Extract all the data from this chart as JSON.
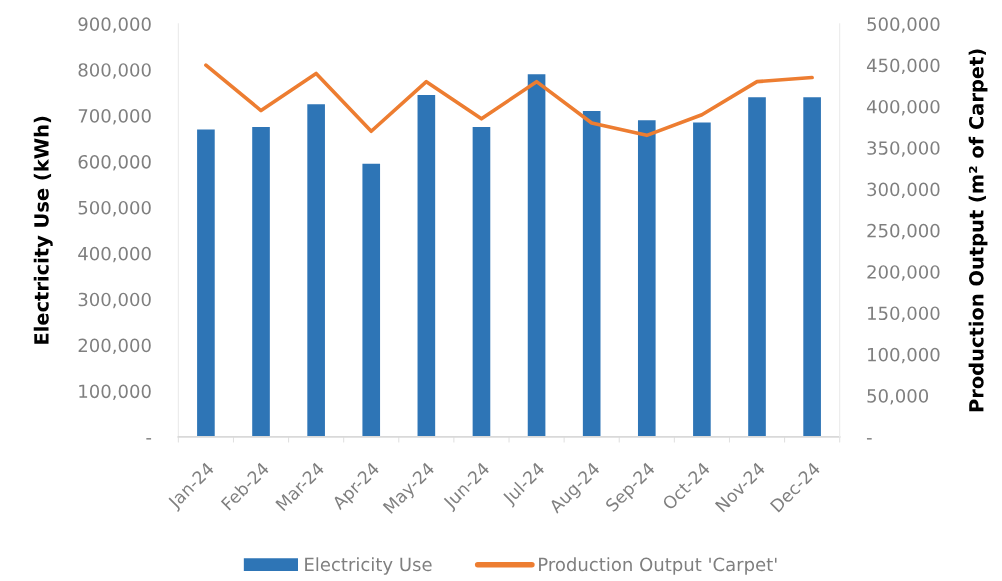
{
  "chart_data": {
    "type": "bar",
    "categories": [
      "Jan-24",
      "Feb-24",
      "Mar-24",
      "Apr-24",
      "May-24",
      "Jun-24",
      "Jul-24",
      "Aug-24",
      "Sep-24",
      "Oct-24",
      "Nov-24",
      "Dec-24"
    ],
    "ylabel": "Electricity Use (kWh)",
    "y2label": "Production Output (m² of Carpet)",
    "ylim": [
      0,
      900000
    ],
    "yticks": [
      {
        "value": 0,
        "label": "-"
      },
      {
        "value": 100000,
        "label": "100,000"
      },
      {
        "value": 200000,
        "label": "200,000"
      },
      {
        "value": 300000,
        "label": "300,000"
      },
      {
        "value": 400000,
        "label": "400,000"
      },
      {
        "value": 500000,
        "label": "500,000"
      },
      {
        "value": 600000,
        "label": "600,000"
      },
      {
        "value": 700000,
        "label": "700,000"
      },
      {
        "value": 800000,
        "label": "800,000"
      },
      {
        "value": 900000,
        "label": "900,000"
      }
    ],
    "y2lim": [
      0,
      500000
    ],
    "y2ticks": [
      {
        "value": 0,
        "label": "-"
      },
      {
        "value": 50000,
        "label": "50,000"
      },
      {
        "value": 100000,
        "label": "100,000"
      },
      {
        "value": 150000,
        "label": "150,000"
      },
      {
        "value": 200000,
        "label": "200,000"
      },
      {
        "value": 250000,
        "label": "250,000"
      },
      {
        "value": 300000,
        "label": "300,000"
      },
      {
        "value": 350000,
        "label": "350,000"
      },
      {
        "value": 400000,
        "label": "400,000"
      },
      {
        "value": 450000,
        "label": "450,000"
      },
      {
        "value": 500000,
        "label": "500,000"
      }
    ],
    "series": [
      {
        "name": "Electricity Use",
        "color": "#2e75b6",
        "values": [
          670000,
          675000,
          725000,
          595000,
          745000,
          675000,
          790000,
          710000,
          690000,
          685000,
          740000,
          740000
        ]
      },
      {
        "name": "Production Output 'Carpet'",
        "type": "line",
        "axis": "y2",
        "color": "#ed7d31",
        "values": [
          450000,
          395000,
          440000,
          370000,
          430000,
          385000,
          430000,
          380000,
          365000,
          390000,
          430000,
          435000
        ]
      }
    ],
    "legend": "bottom"
  }
}
